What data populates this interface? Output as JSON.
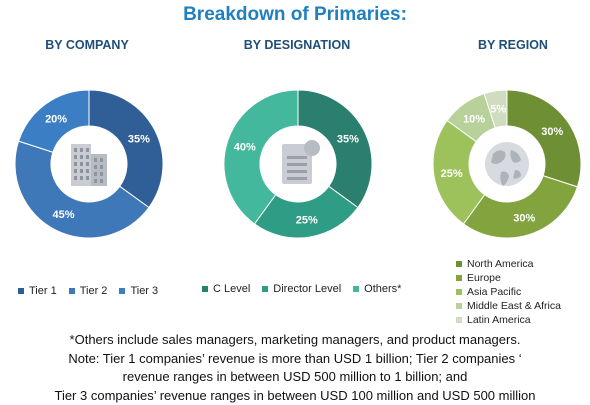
{
  "title": "Breakdown of Primaries:",
  "chart_data": [
    {
      "type": "pie",
      "title": "BY COMPANY",
      "categories": [
        "Tier 1",
        "Tier 2",
        "Tier 3"
      ],
      "values": [
        35,
        45,
        20
      ],
      "labels": [
        "35%",
        "45%",
        "20%"
      ],
      "colors": [
        "#2f5f96",
        "#3f78b9",
        "#3c7ec4"
      ],
      "center_icon": "building-icon",
      "legend": "bottom"
    },
    {
      "type": "pie",
      "title": "BY DESIGNATION",
      "categories": [
        "C Level",
        "Director Level",
        "Others*"
      ],
      "values": [
        35,
        25,
        40
      ],
      "labels": [
        "35%",
        "25%",
        "40%"
      ],
      "colors": [
        "#2a7f6e",
        "#2f9d85",
        "#43b89c"
      ],
      "center_icon": "document-person-icon",
      "legend": "bottom"
    },
    {
      "type": "pie",
      "title": "BY REGION",
      "categories": [
        "North America",
        "Europe",
        "Asia Pacific",
        "Middle East & Africa",
        "Latin America"
      ],
      "values": [
        30,
        30,
        25,
        10,
        5
      ],
      "labels": [
        "30%",
        "30%",
        "25%",
        "10%",
        "5%"
      ],
      "colors": [
        "#6e8f33",
        "#82a33e",
        "#9dc15b",
        "#b8d19a",
        "#cfdcc0"
      ],
      "center_icon": "globe-icon",
      "legend": "bottom"
    }
  ],
  "notes": [
    "*Others include sales managers, marketing managers, and product managers.",
    "Note: Tier 1 companies’ revenue is more than USD 1 billion; Tier 2 companies ‘",
    "revenue ranges in between USD 500 million to 1 billion; and",
    "Tier 3 companies’ revenue ranges in between USD 100 million and USD 500 million"
  ]
}
